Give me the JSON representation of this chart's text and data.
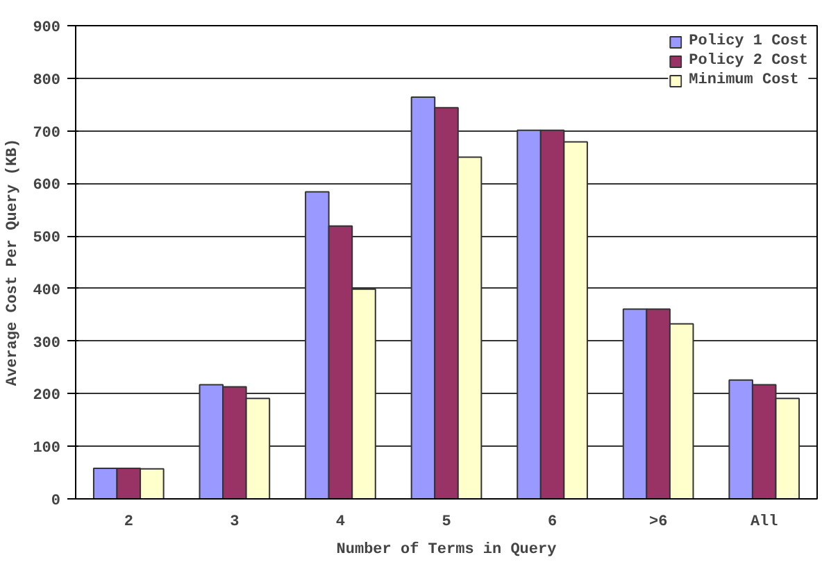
{
  "chart_data": {
    "type": "bar",
    "xlabel": "Number of Terms in Query",
    "ylabel": "Average Cost Per Query (KB)",
    "categories": [
      "2",
      "3",
      "4",
      "5",
      "6",
      ">6",
      "All"
    ],
    "series": [
      {
        "name": "Policy 1 Cost",
        "color": "#9999ff",
        "values": [
          58,
          217,
          584,
          764,
          701,
          361,
          226
        ]
      },
      {
        "name": "Policy 2 Cost",
        "color": "#993366",
        "values": [
          58,
          213,
          519,
          744,
          701,
          361,
          217
        ]
      },
      {
        "name": "Minimum Cost",
        "color": "#ffffcc",
        "values": [
          57,
          191,
          399,
          650,
          679,
          333,
          191
        ]
      }
    ],
    "ylim": [
      0,
      900
    ],
    "yticks": [
      0,
      100,
      200,
      300,
      400,
      500,
      600,
      700,
      800,
      900
    ],
    "grid": "y",
    "legend": "top right"
  }
}
